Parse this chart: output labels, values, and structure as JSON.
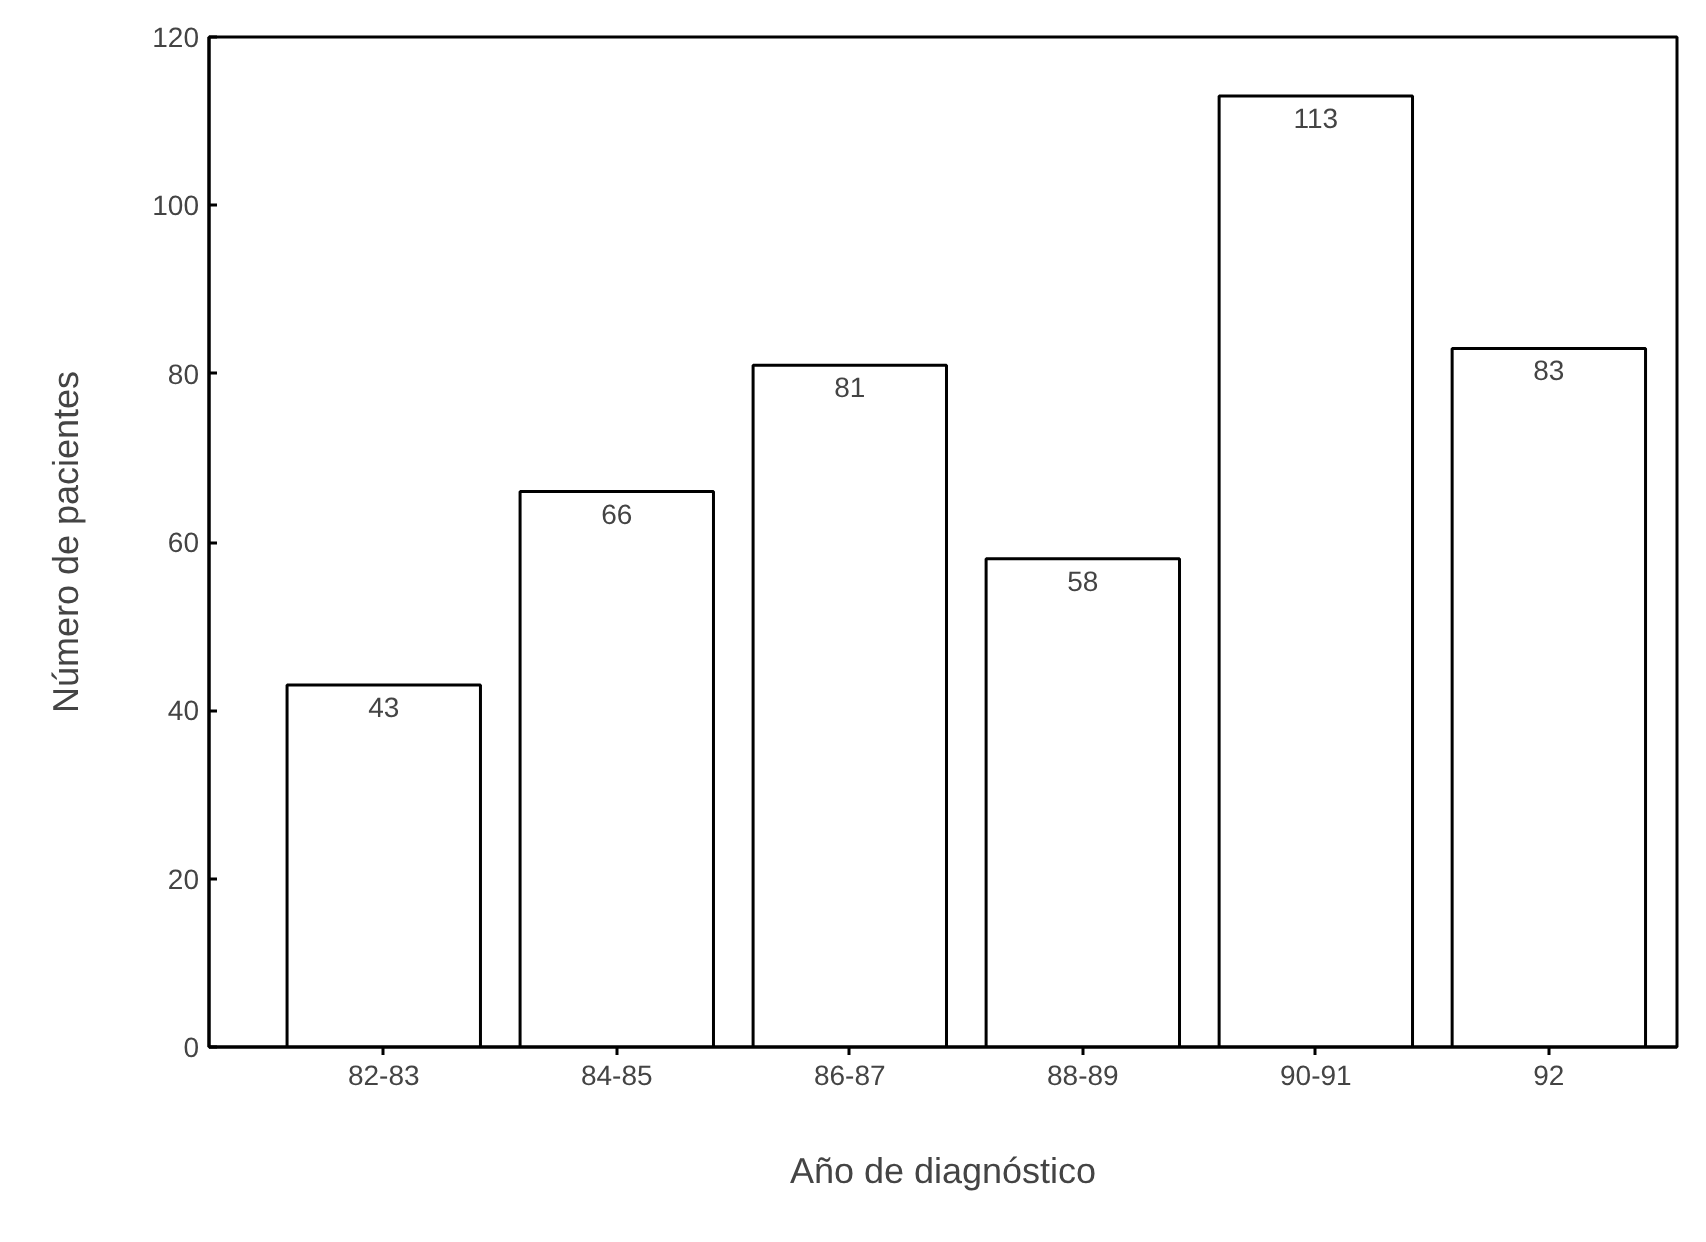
{
  "chart_data": {
    "type": "bar",
    "xlabel": "Año de diagnóstico",
    "ylabel": "Número de pacientes",
    "categories": [
      "82-83",
      "84-85",
      "86-87",
      "88-89",
      "90-91",
      "92"
    ],
    "values": [
      43,
      66,
      81,
      58,
      113,
      83
    ],
    "color": "#ffffff",
    "data_labels": true,
    "grid": false,
    "ylim": [
      0,
      120
    ],
    "yticks": [
      0,
      20,
      40,
      60,
      80,
      100,
      120
    ]
  }
}
